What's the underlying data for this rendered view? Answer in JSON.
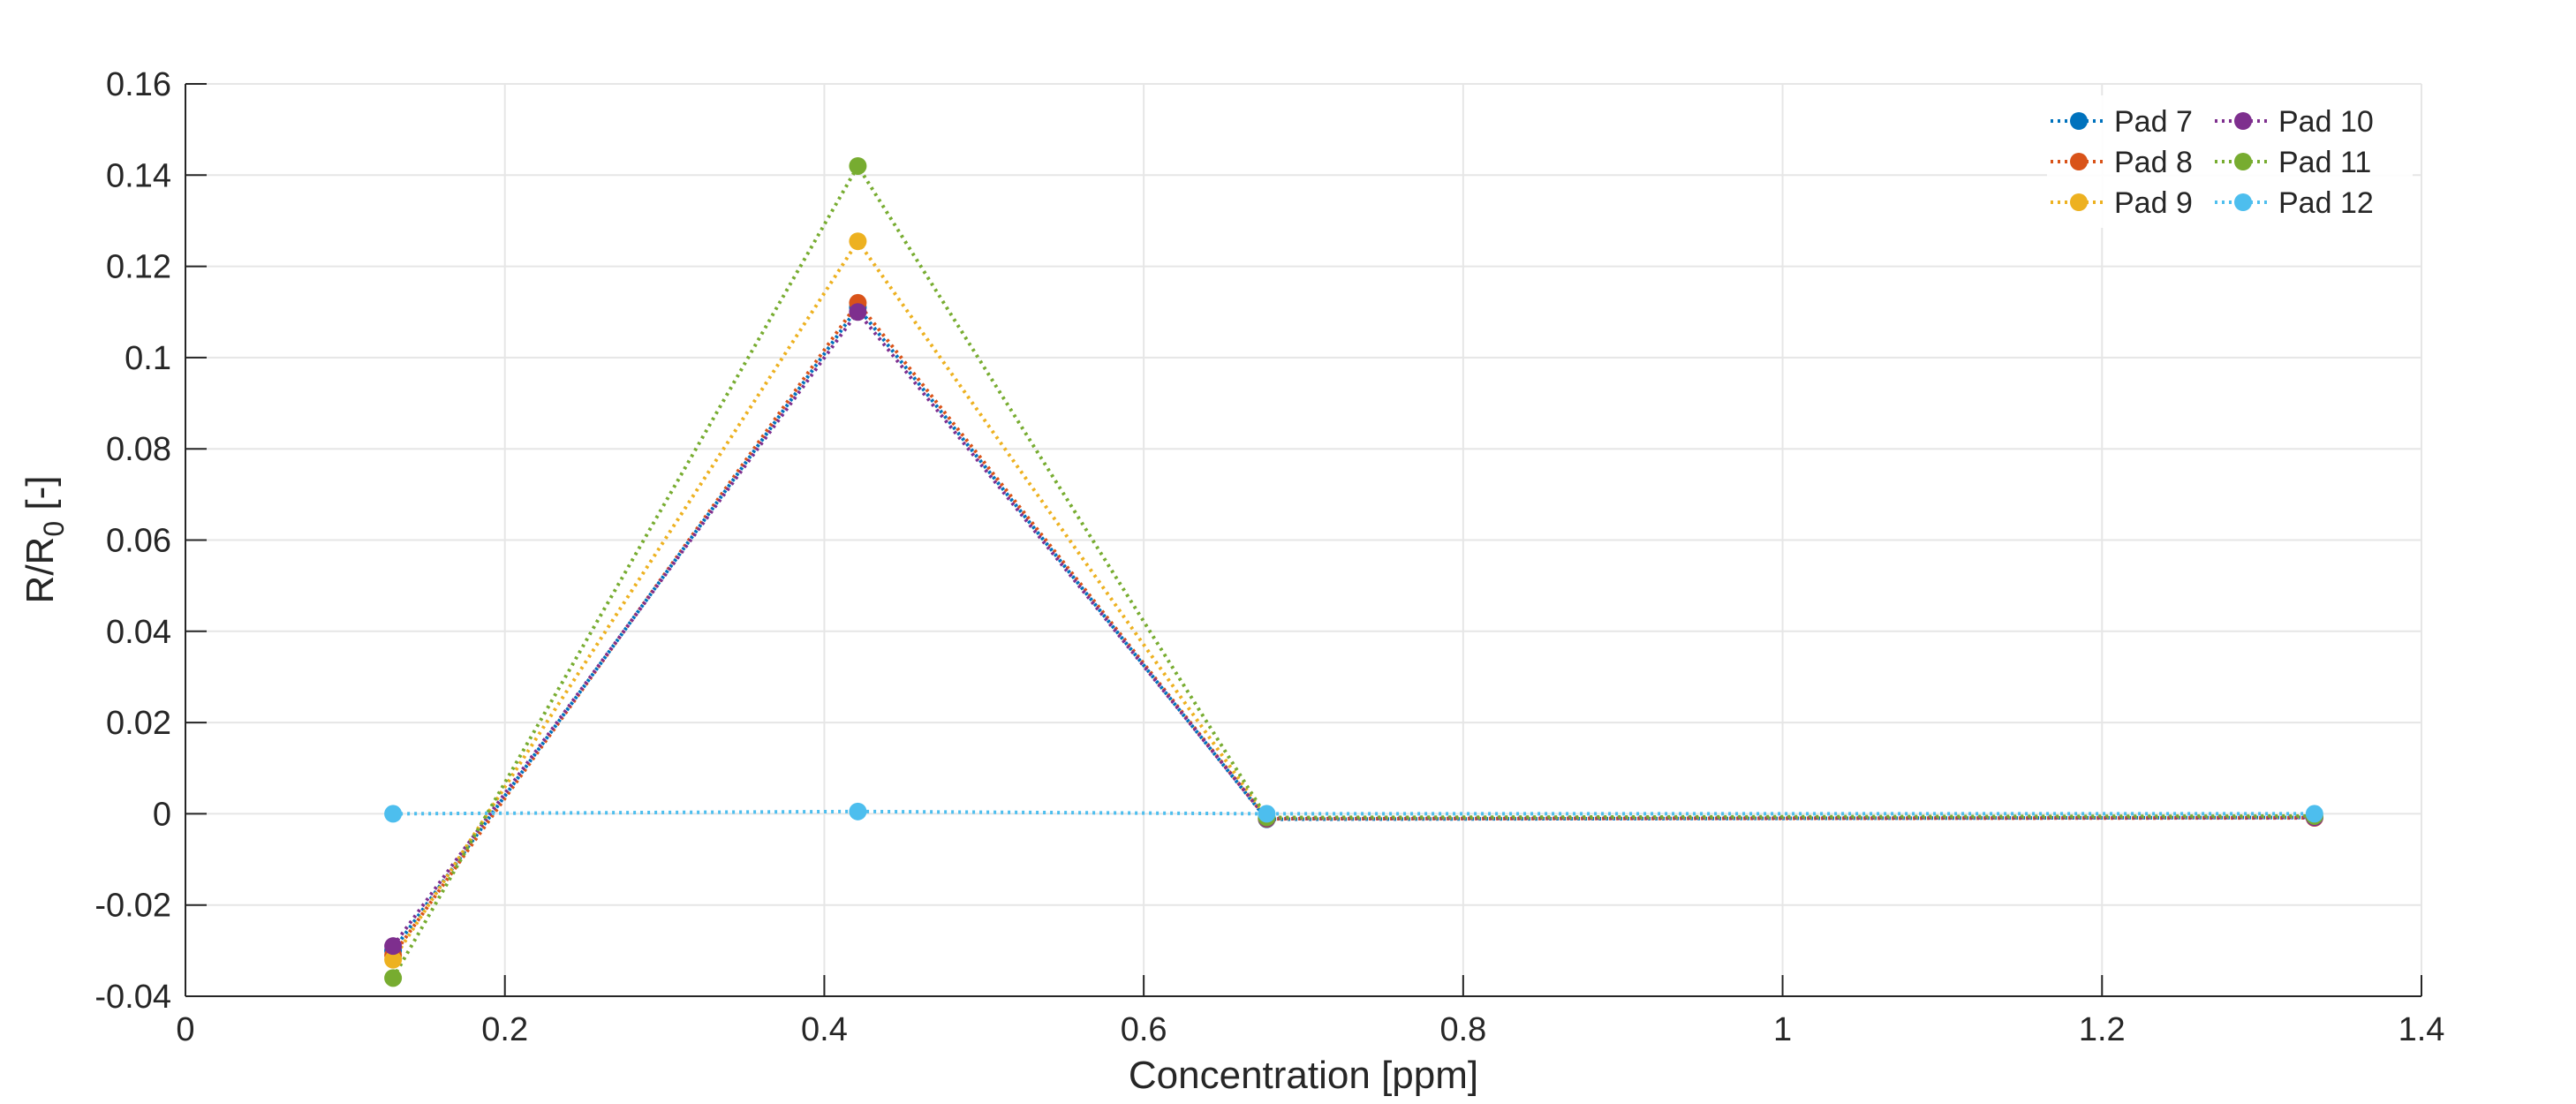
{
  "chart_data": {
    "type": "line",
    "xlabel": "Concentration [ppm]",
    "ylabel": "R/R",
    "ylabel_subscript": "0",
    "ylabel_suffix": " [-]",
    "xlim": [
      0,
      1.4
    ],
    "ylim": [
      -0.04,
      0.16
    ],
    "xticks": [
      0,
      0.2,
      0.4,
      0.6,
      0.8,
      1,
      1.2,
      1.4
    ],
    "xtick_labels": [
      "0",
      "0.2",
      "0.4",
      "0.6",
      "0.8",
      "1",
      "1.2",
      "1.4"
    ],
    "yticks": [
      -0.04,
      -0.02,
      0,
      0.02,
      0.04,
      0.06,
      0.08,
      0.1,
      0.12,
      0.14,
      0.16
    ],
    "ytick_labels": [
      "-0.04",
      "-0.02",
      "0",
      "0.02",
      "0.04",
      "0.06",
      "0.08",
      "0.1",
      "0.12",
      "0.14",
      "0.16"
    ],
    "grid": true,
    "legend_position": "top-right",
    "line_style": "dotted",
    "marker": "circle",
    "x": [
      0.13,
      0.421,
      0.677,
      1.333
    ],
    "series": [
      {
        "name": "Pad 7",
        "color": "#0072BD",
        "values": [
          -0.03,
          0.111,
          -0.0012,
          -0.0008
        ]
      },
      {
        "name": "Pad 8",
        "color": "#D95319",
        "values": [
          -0.031,
          0.112,
          -0.0011,
          -0.0009
        ]
      },
      {
        "name": "Pad 9",
        "color": "#EDB120",
        "values": [
          -0.032,
          0.1255,
          -0.001,
          -0.0007
        ]
      },
      {
        "name": "Pad 10",
        "color": "#7E2F8E",
        "values": [
          -0.029,
          0.11,
          -0.001,
          -0.0008
        ]
      },
      {
        "name": "Pad 11",
        "color": "#77AC30",
        "values": [
          -0.036,
          0.142,
          -0.0008,
          -0.0005
        ]
      },
      {
        "name": "Pad 12",
        "color": "#4DBEEE",
        "values": [
          0.0,
          0.0005,
          0.0,
          0.0
        ]
      }
    ]
  }
}
